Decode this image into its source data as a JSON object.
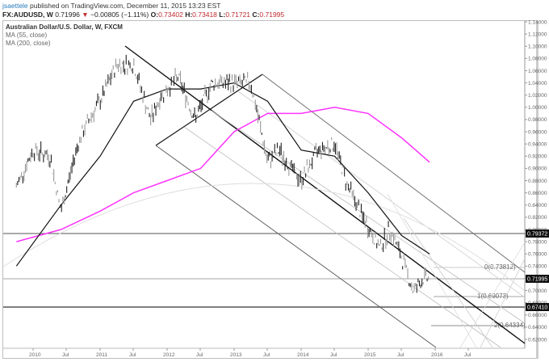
{
  "header": {
    "publisher": "jsaettele",
    "published_text": "published on TradingView.com, December 11, 2015 13:23 EST",
    "symbol_line": "FX:AUDUSD, W",
    "last_price": "0.71996",
    "change": "−0.00805 (−1.11%)",
    "open_label": "O:",
    "open": "0.73402",
    "high_label": "H:",
    "high": "0.73418",
    "low_label": "L:",
    "low": "0.71721",
    "close_label": "C:",
    "close": "0.71995",
    "down_arrow": "▼"
  },
  "legend": {
    "title": "Australian Dollar/U.S. Dollar, W, FXCM",
    "ma1": "MA (55, close)",
    "ma2": "MA (200, close)"
  },
  "colors": {
    "ma55": "#111111",
    "ma200": "#ff33ff",
    "down": "#c0282d",
    "publisher": "#2a7ab9"
  },
  "chart_data": {
    "type": "line",
    "title": "Australian Dollar/U.S. Dollar, W, FXCM",
    "xlabel": "",
    "ylabel": "",
    "ylim": [
      0.61,
      1.145
    ],
    "x_ticks": [
      "2010",
      "Jul",
      "2011",
      "Jul",
      "2012",
      "Jul",
      "2013",
      "Jul",
      "2014",
      "Jul",
      "2015",
      "Jul",
      "2016",
      "Jul"
    ],
    "y_ticks": [
      "1.14000",
      "1.12000",
      "1.10000",
      "1.08000",
      "1.06000",
      "1.04000",
      "1.02000",
      "1.00000",
      "0.98000",
      "0.96000",
      "0.94000",
      "0.92000",
      "0.90000",
      "0.88000",
      "0.86000",
      "0.84000",
      "0.82000",
      "0.80000",
      "0.78000",
      "0.76000",
      "0.74000",
      "0.72000",
      "0.70000",
      "0.68000",
      "0.66000",
      "0.64000",
      "0.62000"
    ],
    "price_labels": [
      {
        "value": "0.79372",
        "note": "horizontal level"
      },
      {
        "value": "0.71995",
        "note": "last close"
      },
      {
        "value": "0.67410",
        "note": "horizontal level"
      }
    ],
    "fib_levels": [
      {
        "label": "0(0.73812)",
        "value": 0.73812
      },
      {
        "label": "1(0.69073)",
        "value": 0.69073
      },
      {
        "label": "2(0.64334)",
        "value": 0.64334
      }
    ],
    "series": [
      {
        "name": "AUDUSD weekly close (approx.)",
        "x": [
          "2009-10",
          "2010-01",
          "2010-04",
          "2010-06",
          "2010-09",
          "2010-11",
          "2011-01",
          "2011-04",
          "2011-07",
          "2011-10",
          "2011-12",
          "2012-03",
          "2012-06",
          "2012-09",
          "2012-12",
          "2013-04",
          "2013-07",
          "2013-09",
          "2013-12",
          "2014-01",
          "2014-04",
          "2014-07",
          "2014-09",
          "2014-12",
          "2015-03",
          "2015-05",
          "2015-08",
          "2015-09",
          "2015-11",
          "2015-12"
        ],
        "values": [
          0.87,
          0.93,
          0.92,
          0.83,
          0.94,
          0.98,
          1.01,
          1.07,
          1.07,
          0.98,
          1.02,
          1.05,
          0.98,
          1.04,
          1.04,
          1.04,
          0.91,
          0.93,
          0.89,
          0.88,
          0.93,
          0.94,
          0.88,
          0.82,
          0.77,
          0.8,
          0.73,
          0.7,
          0.72,
          0.72
        ]
      },
      {
        "name": "MA (55, close)",
        "x": [
          "2009-10",
          "2010-06",
          "2011-01",
          "2011-07",
          "2012-01",
          "2012-07",
          "2013-01",
          "2013-07",
          "2014-01",
          "2014-07",
          "2015-01",
          "2015-07",
          "2015-12"
        ],
        "values": [
          0.74,
          0.84,
          0.92,
          1.01,
          1.03,
          1.03,
          1.04,
          1.01,
          0.93,
          0.92,
          0.86,
          0.79,
          0.76
        ]
      },
      {
        "name": "MA (200, close)",
        "x": [
          "2009-10",
          "2010-06",
          "2011-01",
          "2011-07",
          "2012-01",
          "2012-07",
          "2013-01",
          "2013-07",
          "2014-01",
          "2014-07",
          "2015-01",
          "2015-07",
          "2015-12"
        ],
        "values": [
          0.78,
          0.8,
          0.83,
          0.86,
          0.88,
          0.9,
          0.96,
          0.99,
          0.99,
          1.0,
          0.99,
          0.95,
          0.91
        ]
      }
    ],
    "grid": false,
    "legend_position": "top-left"
  }
}
